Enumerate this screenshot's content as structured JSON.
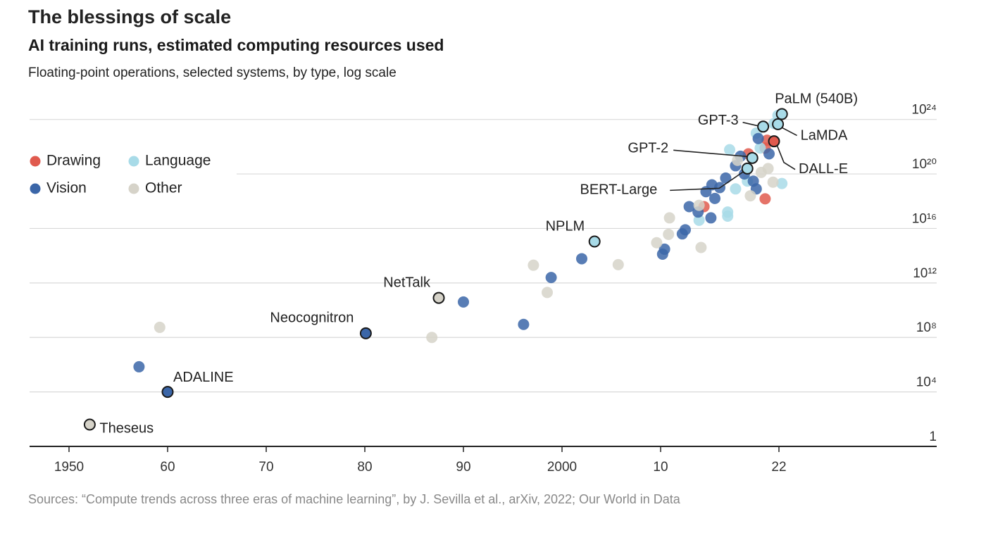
{
  "chart_data": {
    "type": "scatter",
    "title": "The blessings of scale",
    "subtitle": "AI training runs, estimated computing resources used",
    "description": "Floating-point operations, selected systems, by type, log scale",
    "source": "Sources: “Compute trends across three eras of machine learning”, by J. Sevilla et al., arXiv, 2022; Our World in Data",
    "xlim": [
      1946,
      2038
    ],
    "ylim": [
      1,
      1e+26
    ],
    "yscale": "log",
    "grid": true,
    "xticks": [
      {
        "value": 1950,
        "label": "1950"
      },
      {
        "value": 1960,
        "label": "60"
      },
      {
        "value": 1970,
        "label": "70"
      },
      {
        "value": 1980,
        "label": "80"
      },
      {
        "value": 1990,
        "label": "90"
      },
      {
        "value": 2000,
        "label": "2000"
      },
      {
        "value": 2010,
        "label": "10"
      },
      {
        "value": 2022,
        "label": "22"
      }
    ],
    "yticks": [
      1,
      {
        "value": 10000.0,
        "label": "10⁴"
      },
      {
        "value": 100000000.0,
        "label": "10⁸"
      },
      {
        "value": 1000000000000.0,
        "label": "10¹²"
      },
      {
        "value": 1e+16,
        "label": "10¹⁶"
      },
      {
        "value": 1e+20,
        "label": "10²⁰"
      },
      {
        "value": 1e+24,
        "label": "10²⁴"
      }
    ],
    "series": [
      {
        "name": "Drawing",
        "color": "#e05a4e",
        "x": [
          2014.4,
          2018.9,
          2020.6,
          2020.6,
          2020.8,
          2021.5
        ],
        "values": [
          4e+17,
          3e+21,
          1.5e+18,
          8e+21,
          3e+22,
          2.5e+22
        ],
        "point_labels": [
          null,
          null,
          null,
          null,
          null,
          "DALL-E"
        ]
      },
      {
        "name": "Language",
        "color": "#a8dbe8",
        "x": [
          2013.9,
          2016.8,
          2016.8,
          2017.6,
          2017.0,
          2018.8,
          2019.7,
          2021.5,
          2021.9,
          2022.3,
          2020.1,
          2003.3,
          2018.8,
          2019.3,
          2020.4,
          2021.9,
          2022.3
        ],
        "values": [
          4e+16,
          8e+16,
          1.6e+17,
          8e+18,
          6e+21,
          3e+19,
          1e+23,
          5e+23,
          2e+24,
          2e+19,
          8e+21,
          1100000000000000.0,
          2.5e+20,
          1.5e+21,
          3e+23,
          4.5e+23,
          2.5e+24
        ],
        "point_labels": [
          null,
          null,
          null,
          null,
          null,
          null,
          null,
          null,
          null,
          null,
          null,
          "NPLM",
          "BERT-Large",
          "GPT-2",
          "GPT-3",
          "LaMDA",
          "PaLM (540B)"
        ]
      },
      {
        "name": "Vision",
        "color": "#3b66a8",
        "x": [
          1957.1,
          1990.0,
          1996.1,
          1998.9,
          2002.0,
          2010.2,
          2010.4,
          2012.2,
          2012.5,
          2012.9,
          2013.8,
          2015.1,
          2015.5,
          2014.6,
          2015.2,
          2016.0,
          2016.6,
          2017.6,
          2018.5,
          2019.4,
          2019.7,
          2018.1,
          2019.9,
          2021.0,
          1960.0,
          1980.1
        ],
        "values": [
          700000.0,
          40000000000.0,
          900000000.0,
          2500000000000.0,
          60000000000000.0,
          130000000000000.0,
          300000000000000.0,
          4000000000000000.0,
          8000000000000000.0,
          4e+17,
          1.6e+17,
          6e+16,
          1.6e+18,
          5e+18,
          1.6e+19,
          1e+19,
          5e+19,
          4e+20,
          1e+20,
          3e+19,
          8e+18,
          2e+21,
          4e+22,
          3e+21,
          10000.0,
          200000000.0
        ],
        "point_labels": [
          null,
          null,
          null,
          null,
          null,
          null,
          null,
          null,
          null,
          null,
          null,
          null,
          null,
          null,
          null,
          null,
          null,
          null,
          null,
          null,
          null,
          null,
          null,
          null,
          "ADALINE",
          "Neocognitron"
        ]
      },
      {
        "name": "Other",
        "color": "#d6d3c9",
        "x": [
          1959.2,
          1986.8,
          1997.1,
          1998.5,
          2005.7,
          2009.6,
          2010.8,
          2010.9,
          2014.1,
          2013.9,
          2019.1,
          2020.2,
          2020.9,
          2021.4,
          2017.8,
          1952.1,
          1987.5
        ],
        "values": [
          550000000.0,
          100000000.0,
          20000000000000.0,
          200000000000.0,
          22000000000000.0,
          900000000000000.0,
          3700000000000000.0,
          6e+16,
          400000000000000.0,
          5e+17,
          2.5e+18,
          1.3e+20,
          2.5e+20,
          2.5e+19,
          1e+21,
          40,
          80000000000.0
        ],
        "point_labels": [
          null,
          null,
          null,
          null,
          null,
          null,
          null,
          null,
          null,
          null,
          null,
          null,
          null,
          null,
          null,
          "Theseus",
          "NetTalk"
        ]
      }
    ]
  }
}
